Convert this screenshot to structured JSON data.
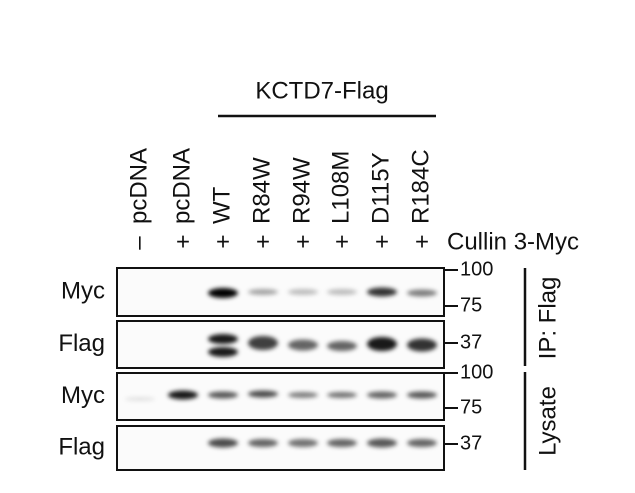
{
  "header": {
    "title": "KCTD7-Flag"
  },
  "lanes": {
    "labels": [
      "pcDNA",
      "pcDNA",
      "WT",
      "R84W",
      "R94W",
      "L108M",
      "D115Y",
      "R184C"
    ],
    "signs": [
      "–",
      "+",
      "+",
      "+",
      "+",
      "+",
      "+",
      "+"
    ]
  },
  "cullin_label": "Cullin 3-Myc",
  "rows": [
    {
      "label": "Myc",
      "markers": [
        "100",
        "75"
      ]
    },
    {
      "label": "Flag",
      "markers": [
        "37"
      ]
    },
    {
      "label": "Myc",
      "markers": [
        "100",
        "75"
      ]
    },
    {
      "label": "Flag",
      "markers": [
        "37"
      ]
    }
  ],
  "sections": [
    "IP: Flag",
    "Lysate"
  ]
}
